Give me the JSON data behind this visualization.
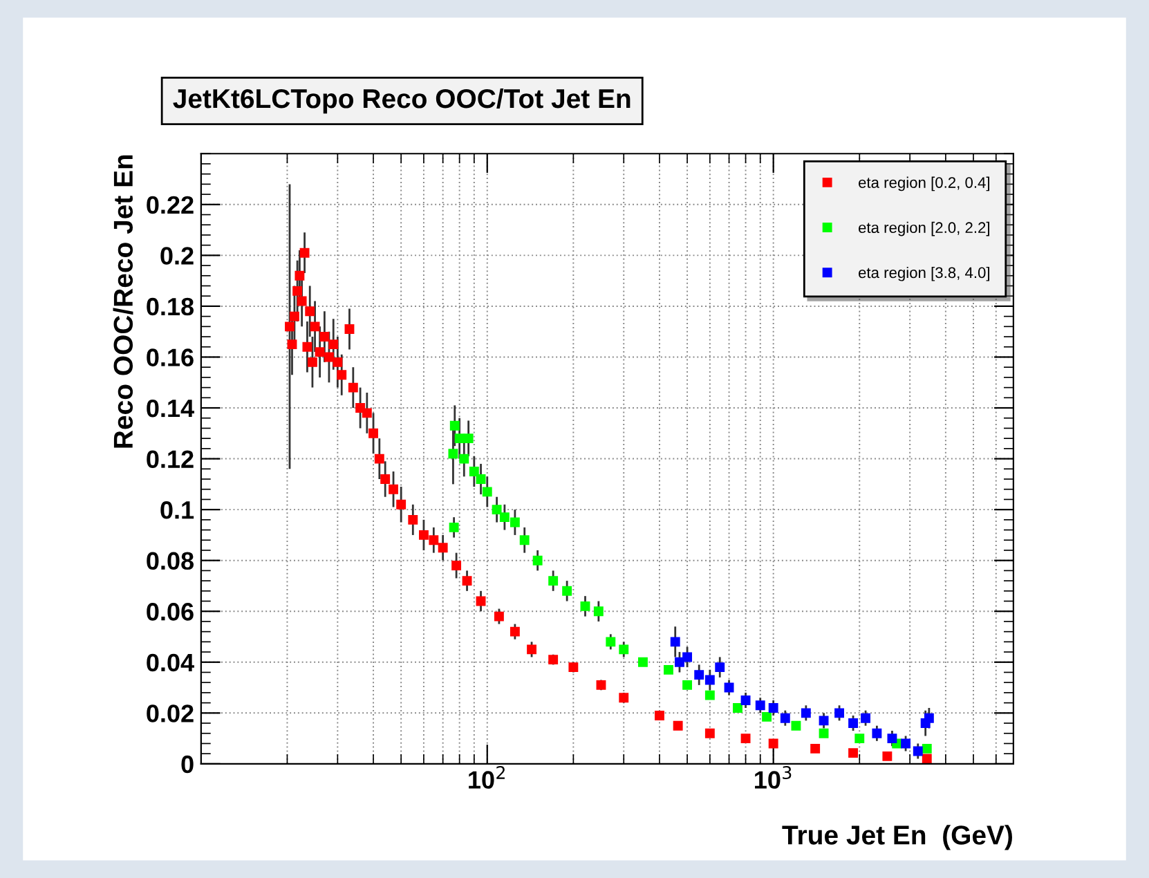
{
  "chart_data": {
    "type": "scatter",
    "title": "JetKt6LCTopo Reco OOC/Tot Jet En",
    "xlabel": "True Jet En  (GeV)",
    "ylabel": "Reco OOC/Reco Jet En",
    "log": "x",
    "xlim": [
      10,
      6900
    ],
    "xticks": [
      {
        "value": 100,
        "label": "10$^{2}$"
      },
      {
        "value": 1000,
        "label": "10$^{3}$"
      }
    ],
    "ylim": [
      0,
      0.24
    ],
    "yticks": [
      0,
      0.02,
      0.04,
      0.06,
      0.08,
      0.1,
      0.12,
      0.14,
      0.16,
      0.18,
      0.2,
      0.22
    ],
    "grid": true,
    "legend": "top right",
    "marker": "square",
    "series": [
      {
        "name": "eta region [0.2, 0.4]",
        "color": "#ff0000",
        "x": [
          20.4,
          20.8,
          21.2,
          21.7,
          22.1,
          22.5,
          23,
          23.5,
          24,
          24.5,
          25,
          26,
          27,
          28,
          29,
          30,
          31,
          33,
          34,
          36,
          38,
          40,
          42,
          44,
          47,
          50,
          55,
          60,
          65,
          70,
          78,
          85,
          95,
          110,
          125,
          143,
          170,
          200,
          250,
          300,
          400,
          464,
          600,
          800,
          1000,
          1400,
          1900,
          2500,
          3440
        ],
        "values": [
          0.172,
          0.165,
          0.176,
          0.186,
          0.192,
          0.182,
          0.201,
          0.164,
          0.178,
          0.158,
          0.172,
          0.162,
          0.168,
          0.16,
          0.165,
          0.158,
          0.153,
          0.171,
          0.148,
          0.14,
          0.138,
          0.13,
          0.12,
          0.112,
          0.108,
          0.102,
          0.096,
          0.09,
          0.088,
          0.085,
          0.078,
          0.072,
          0.064,
          0.058,
          0.052,
          0.045,
          0.041,
          0.038,
          0.031,
          0.026,
          0.019,
          0.015,
          0.012,
          0.01,
          0.008,
          0.006,
          0.0043,
          0.003,
          0.002
        ],
        "errors": [
          0.056,
          0.012,
          0.012,
          0.012,
          0.01,
          0.01,
          0.008,
          0.01,
          0.01,
          0.01,
          0.01,
          0.01,
          0.01,
          0.01,
          0.01,
          0.01,
          0.008,
          0.008,
          0.008,
          0.008,
          0.008,
          0.008,
          0.008,
          0.007,
          0.007,
          0.007,
          0.006,
          0.006,
          0.005,
          0.005,
          0.005,
          0.004,
          0.004,
          0.003,
          0.003,
          0.003,
          0.002,
          0.002,
          0.002,
          0.002,
          null,
          null,
          null,
          null,
          null,
          null,
          null,
          null,
          null
        ]
      },
      {
        "name": "eta region [2.0, 2.2]",
        "color": "#00ff00",
        "x": [
          76,
          76.5,
          77,
          80,
          83,
          86,
          90,
          95,
          100,
          108,
          115,
          125,
          135,
          150,
          170,
          190,
          220,
          245,
          270,
          300,
          350,
          430,
          500,
          600,
          750,
          948,
          1200,
          1500,
          2000,
          2700,
          3440
        ],
        "values": [
          0.122,
          0.093,
          0.133,
          0.128,
          0.12,
          0.128,
          0.115,
          0.112,
          0.107,
          0.1,
          0.097,
          0.095,
          0.088,
          0.08,
          0.072,
          0.068,
          0.062,
          0.06,
          0.048,
          0.045,
          0.04,
          0.037,
          0.031,
          0.027,
          0.022,
          0.0185,
          0.015,
          0.012,
          0.01,
          0.008,
          0.006
        ],
        "errors": [
          0.012,
          0.004,
          0.008,
          0.008,
          0.007,
          0.007,
          0.006,
          0.006,
          0.006,
          0.005,
          0.005,
          0.005,
          0.005,
          0.004,
          0.004,
          0.004,
          0.004,
          0.004,
          0.003,
          0.003,
          null,
          null,
          null,
          null,
          null,
          null,
          null,
          null,
          null,
          null,
          null
        ]
      },
      {
        "name": "eta region [3.8, 4.0]",
        "color": "#0000ff",
        "x": [
          454,
          470,
          500,
          550,
          600,
          650,
          700,
          800,
          900,
          1000,
          1100,
          1300,
          1500,
          1700,
          1900,
          2100,
          2300,
          2600,
          2900,
          3200,
          3400,
          3500
        ],
        "values": [
          0.048,
          0.04,
          0.042,
          0.035,
          0.033,
          0.038,
          0.03,
          0.025,
          0.023,
          0.022,
          0.018,
          0.02,
          0.017,
          0.02,
          0.016,
          0.018,
          0.012,
          0.01,
          0.008,
          0.005,
          0.016,
          0.018
        ],
        "errors": [
          0.006,
          0.004,
          0.004,
          0.004,
          0.004,
          0.004,
          0.003,
          0.003,
          0.003,
          0.003,
          0.003,
          0.003,
          0.003,
          0.003,
          0.003,
          0.003,
          0.003,
          0.003,
          0.003,
          0.003,
          0.005,
          0.004
        ]
      }
    ]
  }
}
